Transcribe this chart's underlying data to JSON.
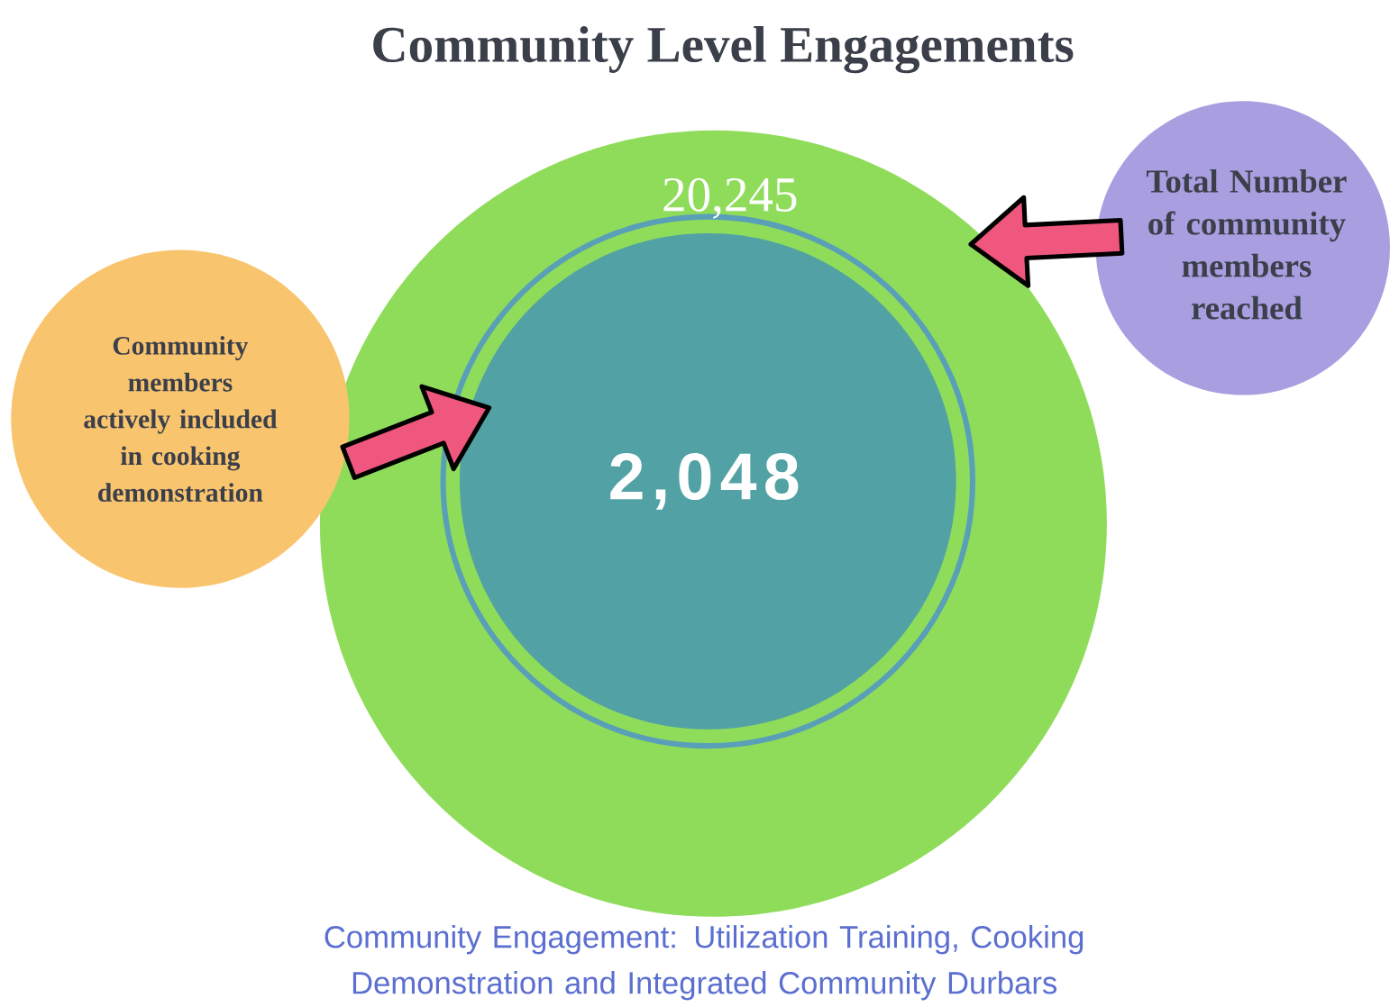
{
  "chart_data": {
    "type": "other",
    "title": "Community Level Engagements",
    "values": [
      20245,
      2048
    ],
    "value_labels": [
      "20,245",
      "2,048"
    ],
    "colors": [
      "#8fdc5a",
      "#52a2a5"
    ],
    "annotations": [
      "Community Engagement: Utilization Training, Cooking Demonstration and Integrated Community Durbars",
      "Total Number of community members reached",
      "Community members actively included in cooking demonstration"
    ]
  }
}
